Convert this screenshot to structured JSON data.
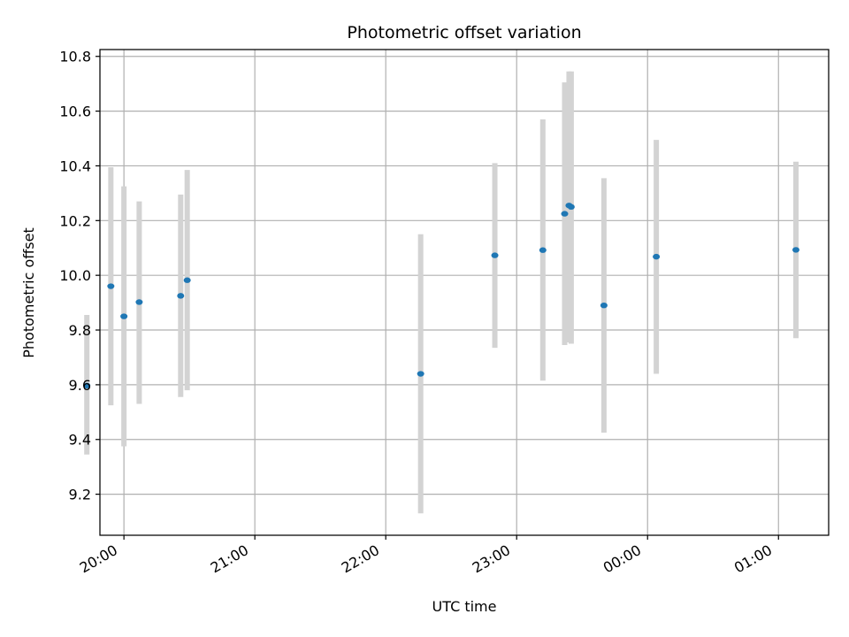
{
  "chart_data": {
    "type": "scatter",
    "title": "Photometric offset variation",
    "xlabel": "UTC time",
    "ylabel": "Photometric offset",
    "grid": true,
    "x_axis_kind": "time",
    "xlim": [
      "19:49",
      "01:23"
    ],
    "ylim": [
      9.05,
      10.825
    ],
    "y_ticks": [
      9.2,
      9.4,
      9.6,
      9.8,
      10.0,
      10.2,
      10.4,
      10.6,
      10.8
    ],
    "x_ticks": [
      "20:00",
      "21:00",
      "22:00",
      "23:00",
      "00:00",
      "01:00"
    ],
    "colors": {
      "marker": "#1f77b4",
      "errorbar": "#d3d3d3",
      "grid": "#b0b0b0"
    },
    "series": [
      {
        "points": [
          {
            "x": "19:43",
            "y": 9.597,
            "ylow": 9.345,
            "yhigh": 9.855
          },
          {
            "x": "19:54",
            "y": 9.96,
            "ylow": 9.525,
            "yhigh": 10.395
          },
          {
            "x": "20:00",
            "y": 9.85,
            "ylow": 9.375,
            "yhigh": 10.325
          },
          {
            "x": "20:07",
            "y": 9.902,
            "ylow": 9.53,
            "yhigh": 10.27
          },
          {
            "x": "20:26",
            "y": 9.925,
            "ylow": 9.555,
            "yhigh": 10.295
          },
          {
            "x": "20:29",
            "y": 9.982,
            "ylow": 9.58,
            "yhigh": 10.385
          },
          {
            "x": "22:16",
            "y": 9.64,
            "ylow": 9.13,
            "yhigh": 10.15
          },
          {
            "x": "22:50",
            "y": 10.073,
            "ylow": 9.735,
            "yhigh": 10.41
          },
          {
            "x": "23:12",
            "y": 10.092,
            "ylow": 9.615,
            "yhigh": 10.57
          },
          {
            "x": "23:22",
            "y": 10.225,
            "ylow": 9.745,
            "yhigh": 10.705
          },
          {
            "x": "23:24",
            "y": 10.255,
            "ylow": 9.755,
            "yhigh": 10.745
          },
          {
            "x": "23:25",
            "y": 10.25,
            "ylow": 9.75,
            "yhigh": 10.745
          },
          {
            "x": "23:40",
            "y": 9.89,
            "ylow": 9.425,
            "yhigh": 10.355
          },
          {
            "x": "00:04",
            "y": 10.068,
            "ylow": 9.64,
            "yhigh": 10.495
          },
          {
            "x": "01:08",
            "y": 10.093,
            "ylow": 9.77,
            "yhigh": 10.415
          }
        ]
      }
    ]
  }
}
